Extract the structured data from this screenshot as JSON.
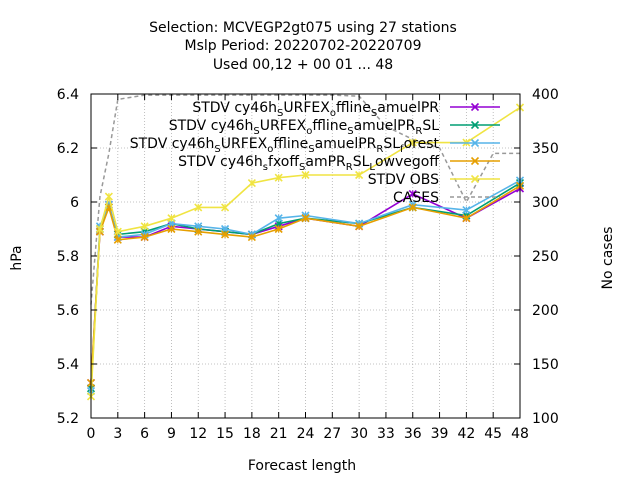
{
  "chart_data": {
    "type": "line",
    "title_lines": [
      "Selection: MCVEGP2gt075 using    27 stations",
      "Mslp   Period: 20220702-20220709",
      "Used  00,12  + 00 01 ... 48"
    ],
    "xlabel": "Forecast length",
    "ylabel": "hPa",
    "y2label": "No cases",
    "xlim": [
      0,
      48
    ],
    "ylim": [
      5.2,
      6.4
    ],
    "y2lim": [
      100,
      400
    ],
    "x_ticks": [
      "0",
      "3",
      "6",
      "9",
      "12",
      "15",
      "18",
      "21",
      "24",
      "27",
      "30",
      "33",
      "36",
      "39",
      "42",
      "45",
      "48"
    ],
    "y_ticks": [
      "5.2",
      "5.4",
      "5.6",
      "5.8",
      "6",
      "6.2",
      "6.4"
    ],
    "y2_ticks": [
      "100",
      "150",
      "200",
      "250",
      "300",
      "350",
      "400"
    ],
    "grid": true,
    "legend_position": "top-right",
    "series": [
      {
        "name": "STDV cy46h_S URFEX_o ffline_S amuelPR",
        "legend_parts": [
          "STDV cy46h",
          "S",
          "URFEX",
          "o",
          "ffline",
          "S",
          "amuelPR"
        ],
        "color": "#9400d3",
        "marker": "x",
        "x": [
          0,
          1,
          2,
          3,
          6,
          9,
          12,
          15,
          18,
          21,
          24,
          30,
          36,
          42,
          48
        ],
        "y": [
          5.33,
          5.89,
          5.99,
          5.87,
          5.87,
          5.91,
          5.9,
          5.89,
          5.88,
          5.91,
          5.94,
          5.91,
          6.03,
          5.94,
          6.05
        ]
      },
      {
        "name": "STDV cy46h_S URFEX_o ffline_S amuelPR_R SL",
        "legend_parts": [
          "STDV cy46h",
          "S",
          "URFEX",
          "o",
          "ffline",
          "S",
          "amuelPR",
          "R",
          "SL"
        ],
        "color": "#009e73",
        "marker": "x",
        "x": [
          0,
          1,
          2,
          3,
          6,
          9,
          12,
          15,
          18,
          21,
          24,
          30,
          36,
          42,
          48
        ],
        "y": [
          5.31,
          5.9,
          5.98,
          5.88,
          5.89,
          5.92,
          5.9,
          5.89,
          5.88,
          5.92,
          5.94,
          5.92,
          5.98,
          5.95,
          6.07
        ]
      },
      {
        "name": "STDV cy46h_S URFEX_o ffline_S amuelPR_R SL_f orest",
        "legend_parts": [
          "STDV cy46h",
          "S",
          "URFEX",
          "o",
          "ffline",
          "S",
          "amuelPR",
          "R",
          "SL",
          "f",
          "orest"
        ],
        "color": "#56b4e9",
        "marker": "x",
        "x": [
          0,
          1,
          2,
          3,
          6,
          9,
          12,
          15,
          18,
          21,
          24,
          30,
          36,
          42,
          48
        ],
        "y": [
          5.3,
          5.91,
          5.99,
          5.87,
          5.88,
          5.92,
          5.91,
          5.9,
          5.88,
          5.94,
          5.95,
          5.92,
          5.99,
          5.97,
          6.08
        ]
      },
      {
        "name": "STDV cy46h_s fxoff_S amPR_R SL_L owvegoff",
        "legend_parts": [
          "STDV cy46h",
          "s",
          "fxoff",
          "S",
          "amPR",
          "R",
          "SL",
          "L",
          "owvegoff"
        ],
        "color": "#e69f00",
        "marker": "x",
        "x": [
          0,
          1,
          2,
          3,
          6,
          9,
          12,
          15,
          18,
          21,
          24,
          30,
          36,
          42,
          48
        ],
        "y": [
          5.33,
          5.89,
          5.98,
          5.86,
          5.87,
          5.9,
          5.89,
          5.88,
          5.87,
          5.9,
          5.94,
          5.91,
          5.98,
          5.94,
          6.06
        ]
      },
      {
        "name": "STDV OBS",
        "legend_parts": [
          "STDV OBS"
        ],
        "color": "#f0e442",
        "marker": "x",
        "x": [
          0,
          1,
          2,
          3,
          6,
          9,
          12,
          15,
          18,
          21,
          24,
          30,
          36,
          42,
          48
        ],
        "y": [
          5.28,
          5.9,
          6.02,
          5.89,
          5.91,
          5.94,
          5.98,
          5.98,
          6.07,
          6.09,
          6.1,
          6.1,
          6.22,
          6.22,
          6.35
        ]
      }
    ],
    "cases": {
      "name": "CASES",
      "color": "#999999",
      "dash": true,
      "x": [
        0,
        1,
        2,
        3,
        6,
        9,
        12,
        15,
        18,
        21,
        24,
        27,
        30,
        33,
        36,
        39,
        42,
        45,
        48
      ],
      "y": [
        205,
        305,
        345,
        395,
        399,
        399,
        399,
        399,
        399,
        399,
        399,
        399,
        398,
        370,
        358,
        350,
        300,
        345,
        345
      ]
    }
  }
}
